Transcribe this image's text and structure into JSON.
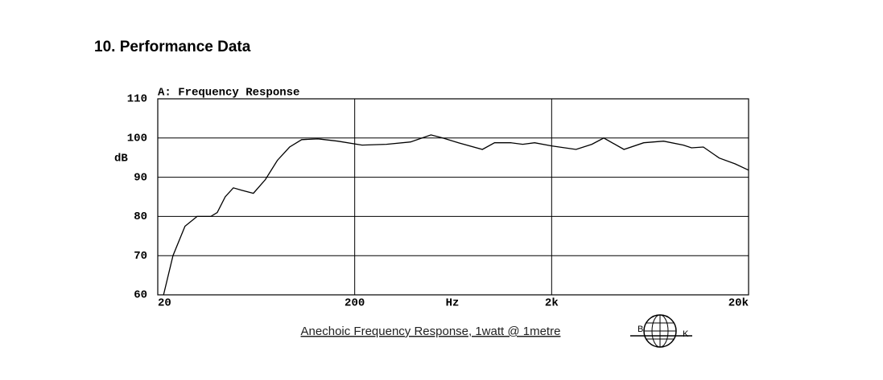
{
  "heading": "10. Performance Data",
  "caption": "Anechoic Frequency Response, 1watt @ 1metre",
  "logo": {
    "left": "B",
    "right": "K"
  },
  "chart_data": {
    "type": "line",
    "title": "A: Frequency Response",
    "x_label": "Hz",
    "y_label": "dB",
    "x": [
      21.4,
      23.9,
      27.5,
      31.7,
      37.2,
      40.1,
      44,
      48.4,
      53.2,
      61.2,
      70.4,
      81,
      93.4,
      107.6,
      130,
      164,
      218,
      290,
      384,
      488,
      560,
      673,
      890,
      1026,
      1243,
      1426,
      1640,
      2000,
      2660,
      3200,
      3680,
      4660,
      5870,
      7400,
      9330,
      10260,
      11780,
      14180,
      17100,
      20000
    ],
    "series": [
      {
        "color": "#000000",
        "values": [
          60,
          70,
          77.5,
          80,
          80,
          81,
          85,
          87.3,
          86.7,
          85.9,
          89.4,
          94.3,
          97.7,
          99.6,
          99.8,
          99.2,
          98.2,
          98.4,
          99,
          100.8,
          100,
          98.8,
          97.1,
          98.8,
          98.8,
          98.4,
          98.8,
          98,
          97.1,
          98.4,
          100,
          97.1,
          98.8,
          99.2,
          98.2,
          97.5,
          97.7,
          94.9,
          93.4,
          91.8
        ]
      }
    ],
    "xscale": "log",
    "xlim": [
      20,
      20000
    ],
    "xticks": [
      20,
      200,
      {
        "value": 2000,
        "label": "2k"
      },
      {
        "value": 20000,
        "label": "20k"
      }
    ],
    "ylim": [
      60,
      110
    ],
    "yticks": [
      60,
      70,
      80,
      90,
      100,
      110
    ],
    "grid": true
  }
}
